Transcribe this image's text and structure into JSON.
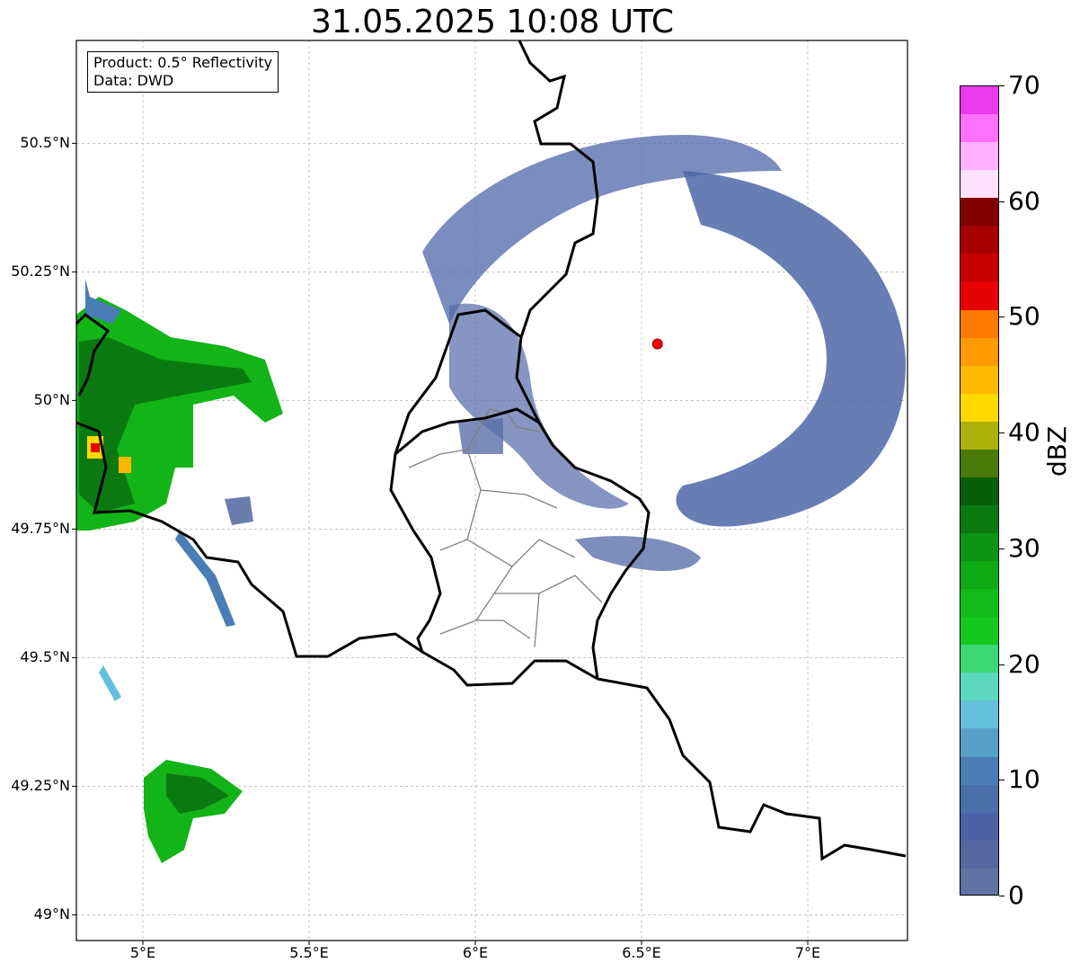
{
  "title": "31.05.2025 10:08 UTC",
  "info": {
    "product": "Product: 0.5° Reflectivity",
    "data": "Data: DWD"
  },
  "axes": {
    "lon_range": [
      4.8,
      7.3
    ],
    "lat_range": [
      48.95,
      50.7
    ],
    "x_ticks": [
      {
        "value": 5.0,
        "label": "5°E"
      },
      {
        "value": 5.5,
        "label": "5.5°E"
      },
      {
        "value": 6.0,
        "label": "6°E"
      },
      {
        "value": 6.5,
        "label": "6.5°E"
      },
      {
        "value": 7.0,
        "label": "7°E"
      }
    ],
    "y_ticks": [
      {
        "value": 49.0,
        "label": "49°N"
      },
      {
        "value": 49.25,
        "label": "49.25°N"
      },
      {
        "value": 49.5,
        "label": "49.5°N"
      },
      {
        "value": 49.75,
        "label": "49.75°N"
      },
      {
        "value": 50.0,
        "label": "50°N"
      },
      {
        "value": 50.25,
        "label": "50.25°N"
      },
      {
        "value": 50.5,
        "label": "50.5°N"
      }
    ],
    "grid": true
  },
  "radar_site": {
    "lon": 6.548,
    "lat": 50.11,
    "color": "#ff0000"
  },
  "colorbar": {
    "label": "dBZ",
    "min": 0,
    "max": 70,
    "ticks": [
      0,
      10,
      20,
      30,
      40,
      50,
      60,
      70
    ],
    "colors": [
      "#6272a4",
      "#5768a0",
      "#4a62a6",
      "#4a6ea8",
      "#4a7db4",
      "#589fc8",
      "#64c0dc",
      "#5cd8c0",
      "#3cd876",
      "#14c81e",
      "#10bc18",
      "#0eaa14",
      "#0c9412",
      "#0a7a10",
      "#085f0a",
      "#4a7a0a",
      "#acb00a",
      "#ffd800",
      "#ffb800",
      "#ff9a00",
      "#ff7a00",
      "#e60000",
      "#c80000",
      "#a60000",
      "#820000",
      "#ffe0ff",
      "#ffb0ff",
      "#ff70ff",
      "#ee3aee"
    ]
  },
  "echo_regions": [
    {
      "name": "west-cell",
      "lon": 4.98,
      "lat": 50.0,
      "dlon": 0.2,
      "dlat": 0.17,
      "dbz": 28
    },
    {
      "name": "southwest-cell",
      "lon": 5.11,
      "lat": 49.22,
      "dlon": 0.08,
      "dlat": 0.08,
      "dbz": 28
    },
    {
      "name": "core",
      "lon": 4.85,
      "lat": 49.9,
      "dlon": 0.03,
      "dlat": 0.025,
      "dbz": 48
    }
  ],
  "map_layers": {
    "country_border_color": "#000000",
    "admin_border_color": "#808080"
  }
}
